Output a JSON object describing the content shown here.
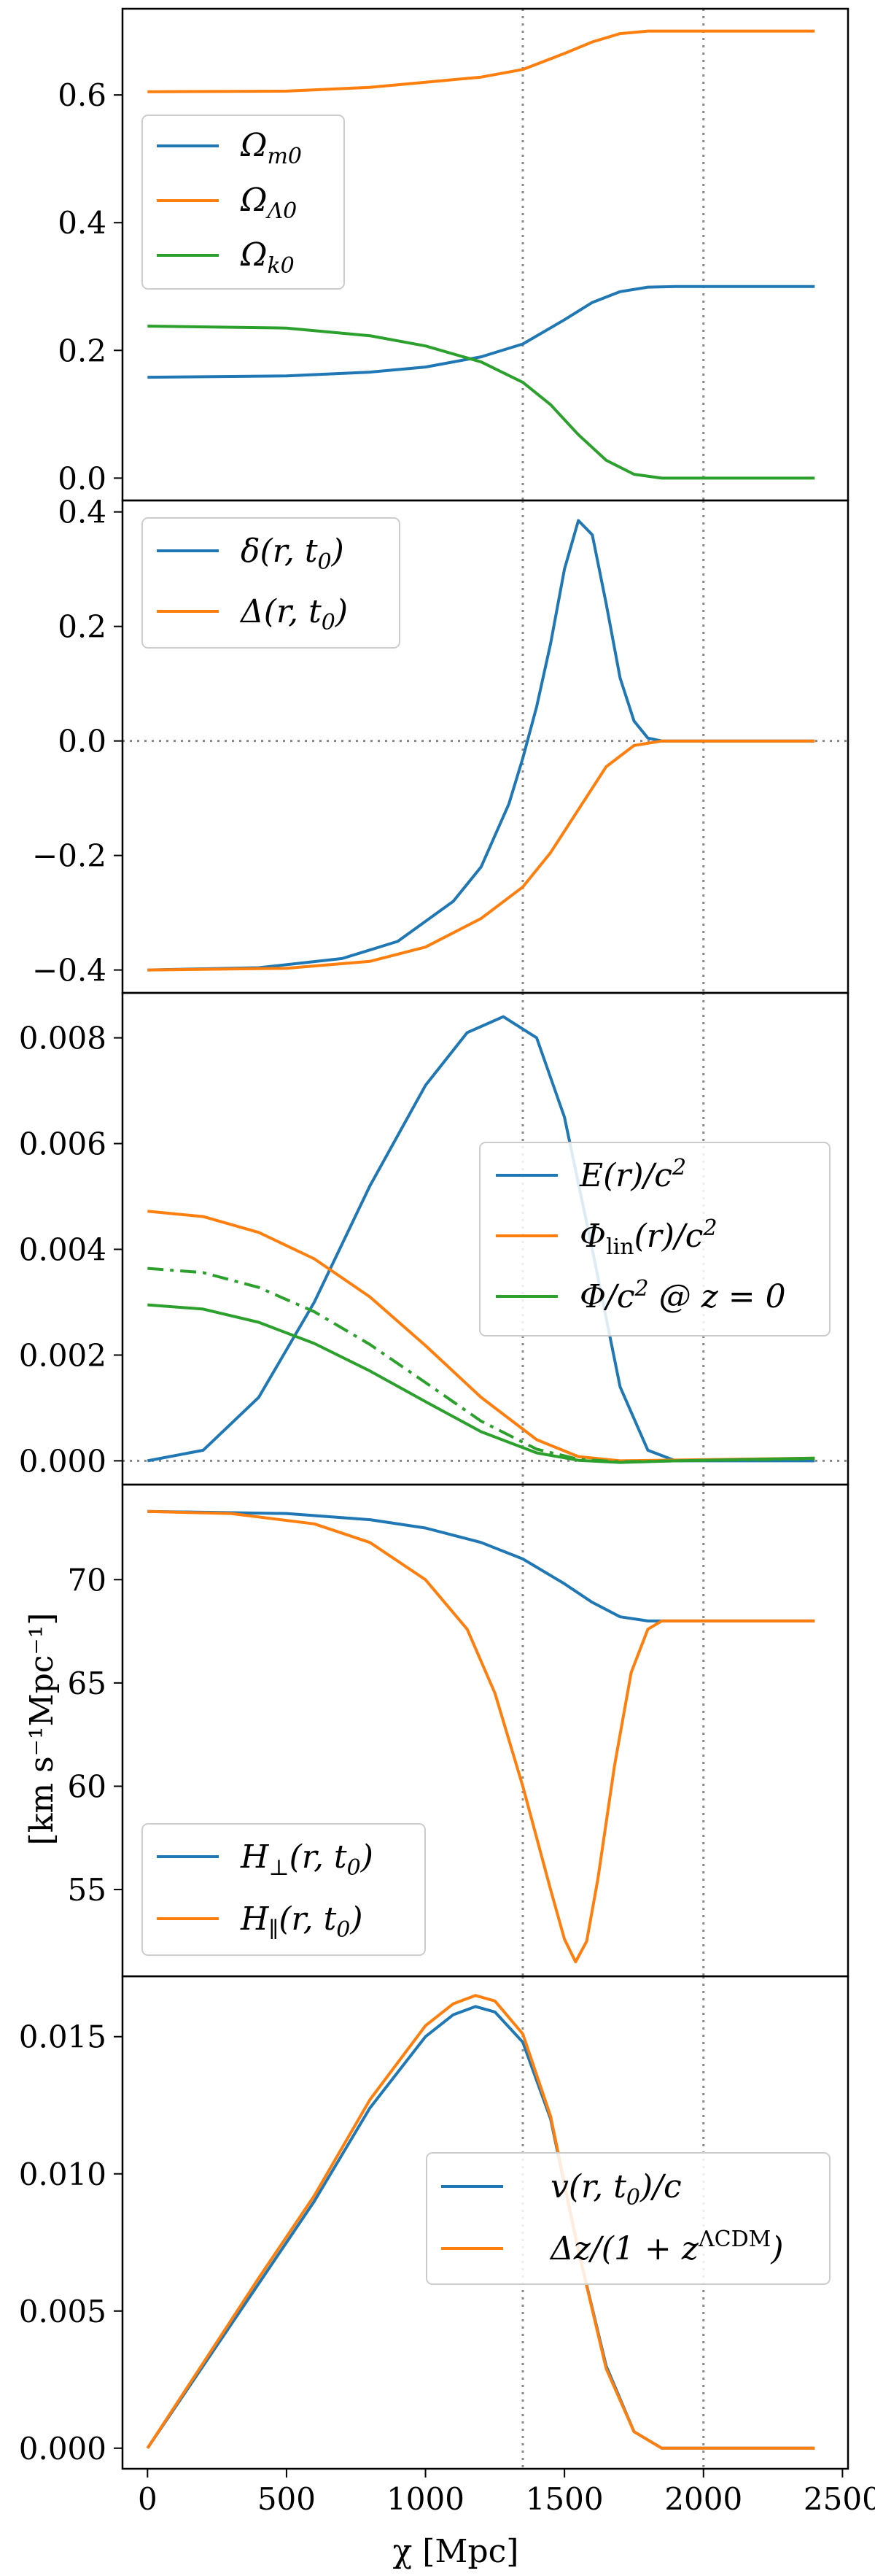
{
  "figure": {
    "shared_xlabel": "χ [Mpc]",
    "x_ticks": [
      "0",
      "500",
      "1000",
      "1500",
      "2000",
      "2500"
    ],
    "vlines_x": [
      1350,
      2000
    ]
  },
  "chart_data": [
    {
      "type": "line",
      "xlim": [
        -90,
        2520
      ],
      "ylim": [
        -0.035,
        0.735
      ],
      "yticks": [
        0.0,
        0.2,
        0.4,
        0.6
      ],
      "ytick_labels": [
        "0.0",
        "0.2",
        "0.4",
        "0.6"
      ],
      "legend_position": "upper-left",
      "series": [
        {
          "name": "Ω_m0",
          "color": "#1f77b4",
          "dash": "",
          "points": [
            [
              0,
              0.158
            ],
            [
              500,
              0.16
            ],
            [
              800,
              0.166
            ],
            [
              1000,
              0.174
            ],
            [
              1200,
              0.19
            ],
            [
              1350,
              0.21
            ],
            [
              1500,
              0.248
            ],
            [
              1600,
              0.275
            ],
            [
              1700,
              0.292
            ],
            [
              1800,
              0.299
            ],
            [
              1900,
              0.3
            ],
            [
              2400,
              0.3
            ]
          ]
        },
        {
          "name": "Ω_Λ0",
          "color": "#ff7f0e",
          "dash": "",
          "points": [
            [
              0,
              0.605
            ],
            [
              500,
              0.606
            ],
            [
              800,
              0.612
            ],
            [
              1000,
              0.62
            ],
            [
              1200,
              0.628
            ],
            [
              1350,
              0.64
            ],
            [
              1500,
              0.665
            ],
            [
              1600,
              0.683
            ],
            [
              1700,
              0.696
            ],
            [
              1800,
              0.7
            ],
            [
              2400,
              0.7
            ]
          ]
        },
        {
          "name": "Ω_k0",
          "color": "#2ca02c",
          "dash": "",
          "points": [
            [
              0,
              0.238
            ],
            [
              500,
              0.235
            ],
            [
              800,
              0.223
            ],
            [
              1000,
              0.207
            ],
            [
              1200,
              0.182
            ],
            [
              1350,
              0.15
            ],
            [
              1450,
              0.115
            ],
            [
              1550,
              0.068
            ],
            [
              1650,
              0.028
            ],
            [
              1750,
              0.006
            ],
            [
              1850,
              0.0
            ],
            [
              2400,
              0.0
            ]
          ]
        }
      ]
    },
    {
      "type": "line",
      "xlim": [
        -90,
        2520
      ],
      "ylim": [
        -0.44,
        0.42
      ],
      "yticks": [
        -0.4,
        -0.2,
        0.0,
        0.2,
        0.4
      ],
      "ytick_labels": [
        "−0.4",
        "−0.2",
        "0.0",
        "0.2",
        "0.4"
      ],
      "hline_y": 0.0,
      "legend_position": "upper-left",
      "series": [
        {
          "name": "δ(r, t_0)",
          "color": "#1f77b4",
          "dash": "",
          "points": [
            [
              0,
              -0.4
            ],
            [
              400,
              -0.396
            ],
            [
              700,
              -0.38
            ],
            [
              900,
              -0.35
            ],
            [
              1100,
              -0.28
            ],
            [
              1200,
              -0.22
            ],
            [
              1300,
              -0.11
            ],
            [
              1350,
              -0.03
            ],
            [
              1400,
              0.06
            ],
            [
              1450,
              0.17
            ],
            [
              1500,
              0.3
            ],
            [
              1550,
              0.385
            ],
            [
              1600,
              0.36
            ],
            [
              1650,
              0.24
            ],
            [
              1700,
              0.11
            ],
            [
              1750,
              0.035
            ],
            [
              1800,
              0.005
            ],
            [
              1850,
              0.0
            ],
            [
              2400,
              0.0
            ]
          ]
        },
        {
          "name": "Δ(r, t_0)",
          "color": "#ff7f0e",
          "dash": "",
          "points": [
            [
              0,
              -0.4
            ],
            [
              500,
              -0.397
            ],
            [
              800,
              -0.385
            ],
            [
              1000,
              -0.36
            ],
            [
              1200,
              -0.31
            ],
            [
              1350,
              -0.255
            ],
            [
              1450,
              -0.195
            ],
            [
              1550,
              -0.12
            ],
            [
              1650,
              -0.045
            ],
            [
              1750,
              -0.008
            ],
            [
              1850,
              0.0
            ],
            [
              2400,
              0.0
            ]
          ]
        }
      ]
    },
    {
      "type": "line",
      "xlim": [
        -90,
        2520
      ],
      "ylim": [
        -0.00045,
        0.00885
      ],
      "yticks": [
        0.0,
        0.002,
        0.004,
        0.006,
        0.008
      ],
      "ytick_labels": [
        "0.000",
        "0.002",
        "0.004",
        "0.006",
        "0.008"
      ],
      "hline_y": 0.0,
      "legend_position": "center-right",
      "series": [
        {
          "name": "E(r)/c²",
          "color": "#1f77b4",
          "dash": "",
          "points": [
            [
              0,
              0.0
            ],
            [
              200,
              0.0002
            ],
            [
              400,
              0.0012
            ],
            [
              600,
              0.003
            ],
            [
              800,
              0.0052
            ],
            [
              1000,
              0.0071
            ],
            [
              1150,
              0.0081
            ],
            [
              1280,
              0.0084
            ],
            [
              1400,
              0.008
            ],
            [
              1500,
              0.0065
            ],
            [
              1600,
              0.004
            ],
            [
              1700,
              0.0014
            ],
            [
              1800,
              0.0002
            ],
            [
              1900,
              0.0
            ],
            [
              2400,
              0.0
            ]
          ]
        },
        {
          "name": "Φ_lin(r)/c²",
          "color": "#ff7f0e",
          "dash": "",
          "points": [
            [
              0,
              0.00472
            ],
            [
              200,
              0.00462
            ],
            [
              400,
              0.00432
            ],
            [
              600,
              0.00382
            ],
            [
              800,
              0.0031
            ],
            [
              1000,
              0.00218
            ],
            [
              1200,
              0.0012
            ],
            [
              1400,
              0.0004
            ],
            [
              1550,
              8e-05
            ],
            [
              1700,
              0.0
            ],
            [
              2400,
              5e-05
            ]
          ]
        },
        {
          "name": "Φ/c² @ z = 0",
          "color": "#2ca02c",
          "dash": "",
          "points": [
            [
              0,
              0.00295
            ],
            [
              200,
              0.00287
            ],
            [
              400,
              0.00262
            ],
            [
              600,
              0.00222
            ],
            [
              800,
              0.0017
            ],
            [
              1000,
              0.00112
            ],
            [
              1200,
              0.00055
            ],
            [
              1400,
              0.00015
            ],
            [
              1550,
              1e-05
            ],
            [
              1700,
              -3e-05
            ],
            [
              1900,
              0.0
            ],
            [
              2400,
              5e-05
            ]
          ]
        },
        {
          "name": "",
          "color": "#2ca02c",
          "dash": "22,9,5,9",
          "points": [
            [
              0,
              0.00364
            ],
            [
              200,
              0.00356
            ],
            [
              400,
              0.00328
            ],
            [
              600,
              0.00282
            ],
            [
              800,
              0.0022
            ],
            [
              1000,
              0.00148
            ],
            [
              1200,
              0.00075
            ],
            [
              1400,
              0.00022
            ],
            [
              1550,
              3e-05
            ],
            [
              1700,
              -2e-05
            ],
            [
              1900,
              0.0
            ],
            [
              2400,
              4e-05
            ]
          ]
        }
      ]
    },
    {
      "type": "line",
      "xlim": [
        -90,
        2520
      ],
      "ylim": [
        50.8,
        74.6
      ],
      "yticks": [
        55,
        60,
        65,
        70
      ],
      "ytick_labels": [
        "55",
        "60",
        "65",
        "70"
      ],
      "ylabel": "[km s⁻¹Mpc⁻¹]",
      "legend_position": "lower-left",
      "series": [
        {
          "name": "H_⊥(r, t_0)",
          "color": "#1f77b4",
          "dash": "",
          "points": [
            [
              0,
              73.3
            ],
            [
              500,
              73.2
            ],
            [
              800,
              72.9
            ],
            [
              1000,
              72.5
            ],
            [
              1200,
              71.8
            ],
            [
              1350,
              71.0
            ],
            [
              1500,
              69.8
            ],
            [
              1600,
              68.9
            ],
            [
              1700,
              68.2
            ],
            [
              1800,
              68.0
            ],
            [
              2400,
              68.0
            ]
          ]
        },
        {
          "name": "H_∥(r, t_0)",
          "color": "#ff7f0e",
          "dash": "",
          "points": [
            [
              0,
              73.3
            ],
            [
              300,
              73.2
            ],
            [
              600,
              72.7
            ],
            [
              800,
              71.8
            ],
            [
              1000,
              70.0
            ],
            [
              1150,
              67.6
            ],
            [
              1250,
              64.5
            ],
            [
              1350,
              60.0
            ],
            [
              1450,
              55.0
            ],
            [
              1500,
              52.6
            ],
            [
              1540,
              51.5
            ],
            [
              1580,
              52.5
            ],
            [
              1620,
              55.5
            ],
            [
              1680,
              61.0
            ],
            [
              1740,
              65.5
            ],
            [
              1800,
              67.6
            ],
            [
              1850,
              68.0
            ],
            [
              2400,
              68.0
            ]
          ]
        }
      ]
    },
    {
      "type": "line",
      "xlim": [
        -90,
        2520
      ],
      "ylim": [
        -0.00075,
        0.0172
      ],
      "yticks": [
        0.0,
        0.005,
        0.01,
        0.015
      ],
      "ytick_labels": [
        "0.000",
        "0.005",
        "0.010",
        "0.015"
      ],
      "legend_position": "center-right",
      "series": [
        {
          "name": "v(r, t_0)/c",
          "color": "#1f77b4",
          "dash": "",
          "points": [
            [
              0,
              0.0
            ],
            [
              200,
              0.003
            ],
            [
              400,
              0.006
            ],
            [
              600,
              0.009
            ],
            [
              800,
              0.0124
            ],
            [
              1000,
              0.015
            ],
            [
              1100,
              0.0158
            ],
            [
              1180,
              0.0161
            ],
            [
              1250,
              0.0159
            ],
            [
              1350,
              0.0148
            ],
            [
              1450,
              0.012
            ],
            [
              1550,
              0.0072
            ],
            [
              1650,
              0.003
            ],
            [
              1750,
              0.0006
            ],
            [
              1850,
              0.0
            ],
            [
              2400,
              0.0
            ]
          ]
        },
        {
          "name": "Δz/(1 + z^ΛCDM)",
          "color": "#ff7f0e",
          "dash": "",
          "points": [
            [
              0,
              0.0
            ],
            [
              200,
              0.0031
            ],
            [
              400,
              0.0062
            ],
            [
              600,
              0.0092
            ],
            [
              800,
              0.0127
            ],
            [
              1000,
              0.0154
            ],
            [
              1100,
              0.0162
            ],
            [
              1180,
              0.0165
            ],
            [
              1250,
              0.0163
            ],
            [
              1350,
              0.0151
            ],
            [
              1450,
              0.0121
            ],
            [
              1550,
              0.0072
            ],
            [
              1650,
              0.0029
            ],
            [
              1750,
              0.0006
            ],
            [
              1850,
              0.0
            ],
            [
              2400,
              0.0
            ]
          ]
        }
      ]
    }
  ]
}
